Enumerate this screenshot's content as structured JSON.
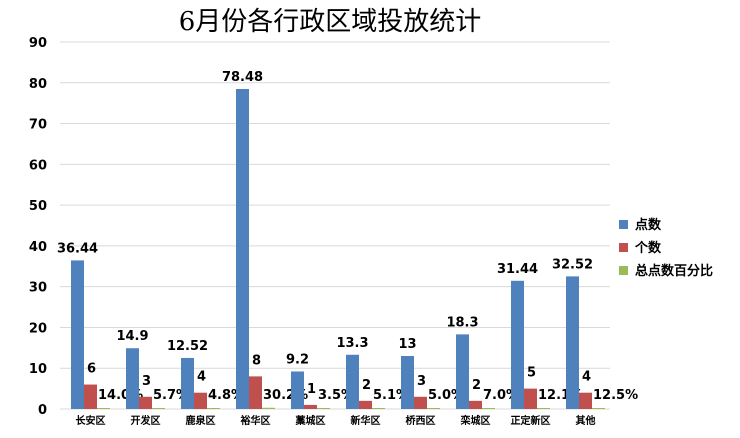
{
  "chart_data": {
    "type": "bar",
    "title": "6月份各行政区域投放统计",
    "categories": [
      "长安区",
      "开发区",
      "鹿泉区",
      "裕华区",
      "藁城区",
      "新华区",
      "桥西区",
      "栾城区",
      "正定新区",
      "其他"
    ],
    "ylim": [
      0,
      90
    ],
    "yticks": [
      0,
      10,
      20,
      30,
      40,
      50,
      60,
      70,
      80,
      90
    ],
    "grid": true,
    "legend_position": "right",
    "series": [
      {
        "name": "点数",
        "color": "#4F81BD",
        "values": [
          36.44,
          14.9,
          12.52,
          78.48,
          9.2,
          13.3,
          13,
          18.3,
          31.44,
          32.52
        ],
        "labels": [
          "36.44",
          "14.9",
          "12.52",
          "78.48",
          "9.2",
          "13.3",
          "13",
          "18.3",
          "31.44",
          "32.52"
        ]
      },
      {
        "name": "个数",
        "color": "#C0504D",
        "values": [
          6,
          3,
          4,
          8,
          1,
          2,
          3,
          2,
          5,
          4
        ],
        "labels": [
          "6",
          "3",
          "4",
          "8",
          "1",
          "2",
          "3",
          "2",
          "5",
          "4"
        ]
      },
      {
        "name": "总点数百分比",
        "color": "#9BBB59",
        "values": [
          0.14,
          0.057,
          0.048,
          0.302,
          0.035,
          0.051,
          0.05,
          0.07,
          0.121,
          0.125
        ],
        "labels": [
          "14.0%",
          "5.7%",
          "4.8%",
          "30.2%",
          "3.5%",
          "5.1%",
          "5.0%",
          "7.0%",
          "12.1%",
          "12.5%"
        ]
      }
    ]
  }
}
